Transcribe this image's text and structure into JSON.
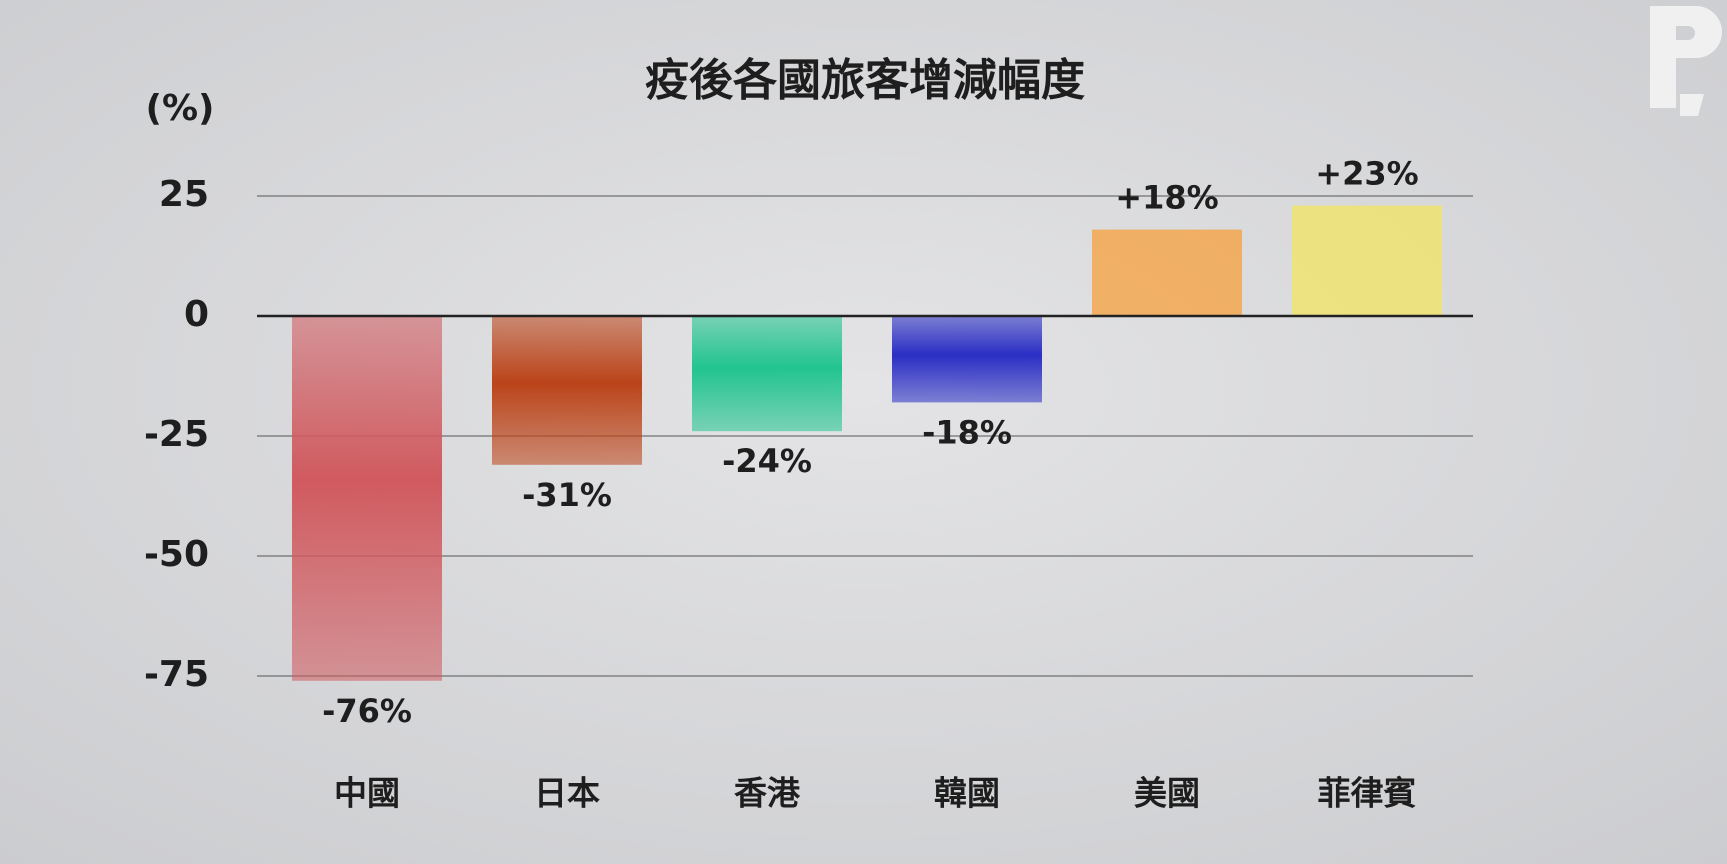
{
  "chart_data": {
    "type": "bar",
    "title": "疫後各國旅客增減幅度",
    "y_label": "(%)",
    "categories": [
      "中國",
      "日本",
      "香港",
      "韓國",
      "美國",
      "菲律賓"
    ],
    "values": [
      -76,
      -31,
      -24,
      -18,
      18,
      23
    ],
    "value_labels": [
      "-76%",
      "-31%",
      "-24%",
      "-18%",
      "+18%",
      "+23%"
    ],
    "colors": [
      "#d05a5f",
      "#bb4419",
      "#22c490",
      "#2a2ec4",
      "#ff8a00",
      "#fce934"
    ],
    "ylim": [
      -80,
      30
    ],
    "yticks": [
      25,
      0,
      -25,
      -50,
      -75
    ],
    "grid": true
  }
}
